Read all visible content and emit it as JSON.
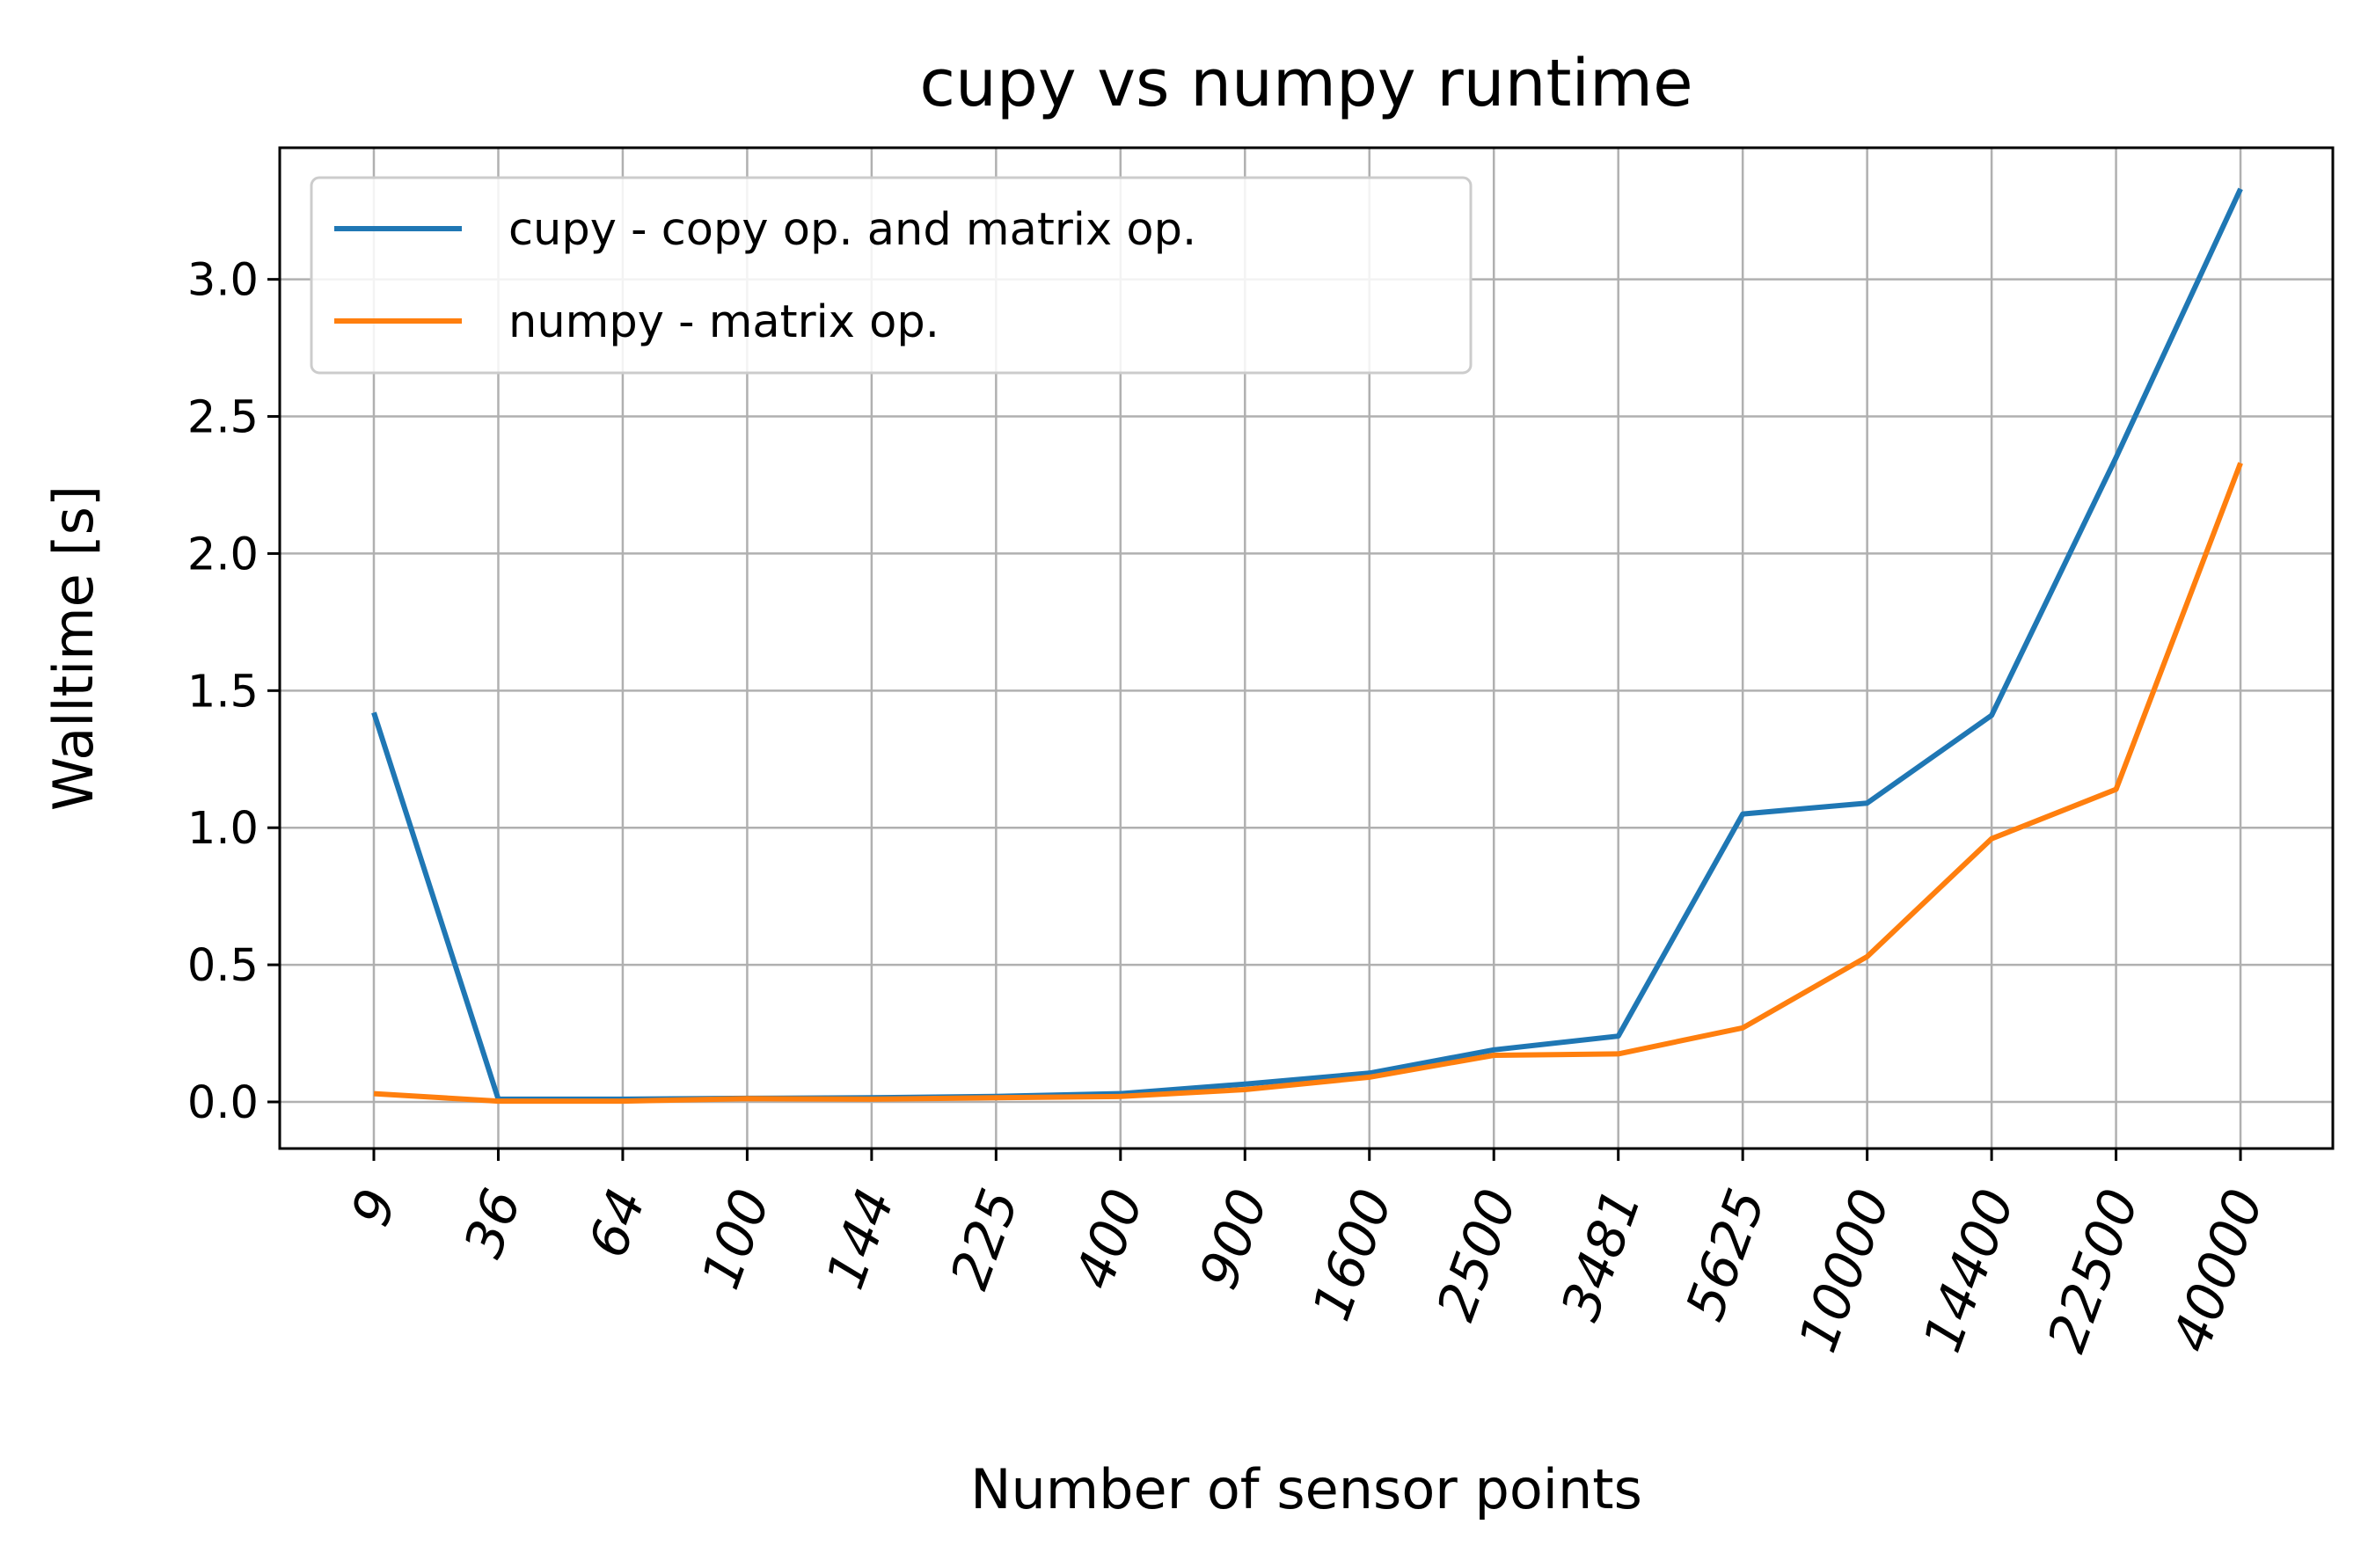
{
  "chart_data": {
    "type": "line",
    "title": "cupy vs numpy runtime",
    "xlabel": "Number of sensor points",
    "ylabel": "Walltime [s]",
    "categories": [
      "9",
      "36",
      "64",
      "100",
      "144",
      "225",
      "400",
      "900",
      "1600",
      "2500",
      "3481",
      "5625",
      "10000",
      "14400",
      "22500",
      "40000"
    ],
    "yticks": [
      "0.0",
      "0.5",
      "1.0",
      "1.5",
      "2.0",
      "2.5",
      "3.0"
    ],
    "ylim": [
      -0.17,
      3.48
    ],
    "grid": true,
    "legend_position": "upper-left",
    "series": [
      {
        "name": "cupy - copy op. and matrix op.",
        "color": "#1f77b4",
        "values": [
          1.42,
          0.01,
          0.01,
          0.013,
          0.015,
          0.02,
          0.03,
          0.065,
          0.105,
          0.19,
          0.24,
          1.05,
          1.09,
          1.41,
          2.35,
          3.33
        ]
      },
      {
        "name": "numpy - matrix op.",
        "color": "#ff7f0e",
        "values": [
          0.03,
          0.003,
          0.003,
          0.012,
          0.01,
          0.015,
          0.02,
          0.045,
          0.09,
          0.17,
          0.175,
          0.27,
          0.53,
          0.96,
          1.14,
          2.33
        ]
      }
    ]
  }
}
